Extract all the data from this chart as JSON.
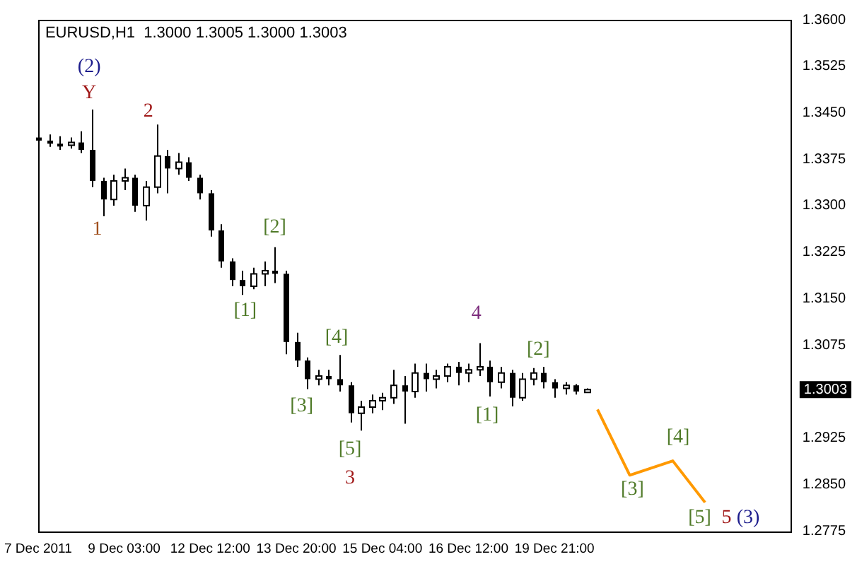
{
  "chart_data": {
    "type": "candlestick",
    "title": "EURUSD,H1  1.3000 1.3005 1.3000 1.3003",
    "categories": [
      "7 Dec 2011",
      null,
      null,
      null,
      null,
      null,
      null,
      null,
      "9 Dec 03:00",
      null,
      null,
      null,
      null,
      null,
      null,
      null,
      "12 Dec 12:00",
      null,
      null,
      null,
      null,
      null,
      null,
      null,
      "13 Dec 20:00",
      null,
      null,
      null,
      null,
      null,
      null,
      null,
      "15 Dec 04:00",
      null,
      null,
      null,
      null,
      null,
      null,
      null,
      "16 Dec 12:00",
      null,
      null,
      null,
      null,
      null,
      null,
      null,
      "19 Dec 21:00",
      null,
      null,
      null,
      null,
      null,
      null,
      null,
      null,
      null,
      null,
      null,
      null,
      null,
      null,
      null,
      null,
      null,
      null,
      null,
      null,
      null,
      null
    ],
    "ohlc": [
      [
        1.341,
        1.342,
        1.3395,
        1.3405
      ],
      [
        1.3405,
        1.3415,
        1.3395,
        1.34
      ],
      [
        1.34,
        1.3412,
        1.339,
        1.3398
      ],
      [
        1.3398,
        1.341,
        1.3392,
        1.3402
      ],
      [
        1.3402,
        1.342,
        1.3385,
        1.339
      ],
      [
        1.339,
        1.3455,
        1.333,
        1.334
      ],
      [
        1.334,
        1.3345,
        1.3283,
        1.331
      ],
      [
        1.331,
        1.335,
        1.33,
        1.334
      ],
      [
        1.334,
        1.336,
        1.3325,
        1.3345
      ],
      [
        1.3345,
        1.335,
        1.329,
        1.33
      ],
      [
        1.33,
        1.334,
        1.3276,
        1.333
      ],
      [
        1.333,
        1.3431,
        1.332,
        1.338
      ],
      [
        1.338,
        1.339,
        1.332,
        1.336
      ],
      [
        1.336,
        1.3385,
        1.335,
        1.337
      ],
      [
        1.337,
        1.3378,
        1.334,
        1.3345
      ],
      [
        1.3345,
        1.335,
        1.331,
        1.332
      ],
      [
        1.332,
        1.3325,
        1.325,
        1.326
      ],
      [
        1.326,
        1.327,
        1.32,
        1.321
      ],
      [
        1.321,
        1.3215,
        1.317,
        1.318
      ],
      [
        1.318,
        1.3195,
        1.3156,
        1.317
      ],
      [
        1.317,
        1.32,
        1.3165,
        1.319
      ],
      [
        1.319,
        1.321,
        1.317,
        1.3195
      ],
      [
        1.3195,
        1.3233,
        1.3175,
        1.319
      ],
      [
        1.319,
        1.3195,
        1.306,
        1.308
      ],
      [
        1.308,
        1.3095,
        1.304,
        1.305
      ],
      [
        1.305,
        1.3055,
        1.3004,
        1.302
      ],
      [
        1.302,
        1.3035,
        1.301,
        1.3025
      ],
      [
        1.3025,
        1.3035,
        1.301,
        1.302
      ],
      [
        1.302,
        1.3059,
        1.3,
        1.301
      ],
      [
        1.301,
        1.3015,
        1.295,
        1.2965
      ],
      [
        1.2965,
        1.2985,
        1.2937,
        1.2975
      ],
      [
        1.2975,
        1.2995,
        1.2965,
        1.2985
      ],
      [
        1.2985,
        1.2998,
        1.297,
        1.299
      ],
      [
        1.299,
        1.3035,
        1.298,
        1.301
      ],
      [
        1.301,
        1.3025,
        1.2948,
        1.3
      ],
      [
        1.3,
        1.3045,
        1.299,
        1.303
      ],
      [
        1.303,
        1.3045,
        1.3,
        1.302
      ],
      [
        1.302,
        1.3035,
        1.3005,
        1.3025
      ],
      [
        1.3025,
        1.3045,
        1.3015,
        1.304
      ],
      [
        1.304,
        1.3048,
        1.301,
        1.303
      ],
      [
        1.303,
        1.3045,
        1.3015,
        1.3035
      ],
      [
        1.3035,
        1.3078,
        1.3025,
        1.304
      ],
      [
        1.304,
        1.305,
        1.2992,
        1.3015
      ],
      [
        1.3015,
        1.304,
        1.3005,
        1.303
      ],
      [
        1.303,
        1.3035,
        1.2976,
        1.299
      ],
      [
        1.299,
        1.303,
        1.2985,
        1.302
      ],
      [
        1.302,
        1.3038,
        1.301,
        1.303
      ],
      [
        1.303,
        1.304,
        1.3005,
        1.3015
      ],
      [
        1.3015,
        1.302,
        1.299,
        1.3005
      ],
      [
        1.3005,
        1.3015,
        1.2995,
        1.301
      ],
      [
        1.301,
        1.3012,
        1.2995,
        1.3
      ],
      [
        1.3,
        1.3005,
        1.3,
        1.3003
      ],
      null,
      null,
      null,
      null,
      null,
      null,
      null,
      null,
      null,
      null,
      null,
      null,
      null,
      null,
      null,
      null,
      null,
      null,
      null
    ],
    "series": [
      {
        "type": "line",
        "color": "#ff9900",
        "values": [
          null,
          null,
          null,
          null,
          null,
          null,
          null,
          null,
          null,
          null,
          null,
          null,
          null,
          null,
          null,
          null,
          null,
          null,
          null,
          null,
          null,
          null,
          null,
          null,
          null,
          null,
          null,
          null,
          null,
          null,
          null,
          null,
          null,
          null,
          null,
          null,
          null,
          null,
          null,
          null,
          null,
          null,
          null,
          null,
          null,
          null,
          null,
          null,
          null,
          null,
          null,
          null,
          1.2971,
          null,
          null,
          1.2865,
          null,
          null,
          null,
          1.2888,
          null,
          null,
          1.2821,
          null,
          null,
          null,
          null,
          null,
          null,
          null,
          null
        ]
      }
    ],
    "ylim": [
      1.2775,
      1.36
    ],
    "yticks": [
      {
        "value": 1.36,
        "label": "1.3600"
      },
      1.3525,
      {
        "value": 1.345,
        "label": "1.3450"
      },
      1.3375,
      {
        "value": 1.33,
        "label": "1.3300"
      },
      1.3225,
      {
        "value": 1.315,
        "label": "1.3150"
      },
      1.3075,
      1.3003,
      1.2925,
      {
        "value": 1.285,
        "label": "1.2850"
      },
      1.2775
    ],
    "grid": false,
    "legend": false,
    "marker": "none",
    "annotations": [
      "(2)",
      "Y",
      "2",
      "1",
      "[2]",
      "[1]",
      "[4]",
      "[3]",
      "[5]",
      "3",
      "4",
      "[1]",
      "[2]",
      "[3]",
      "[4]",
      "[5]",
      "5",
      "(3)"
    ]
  }
}
